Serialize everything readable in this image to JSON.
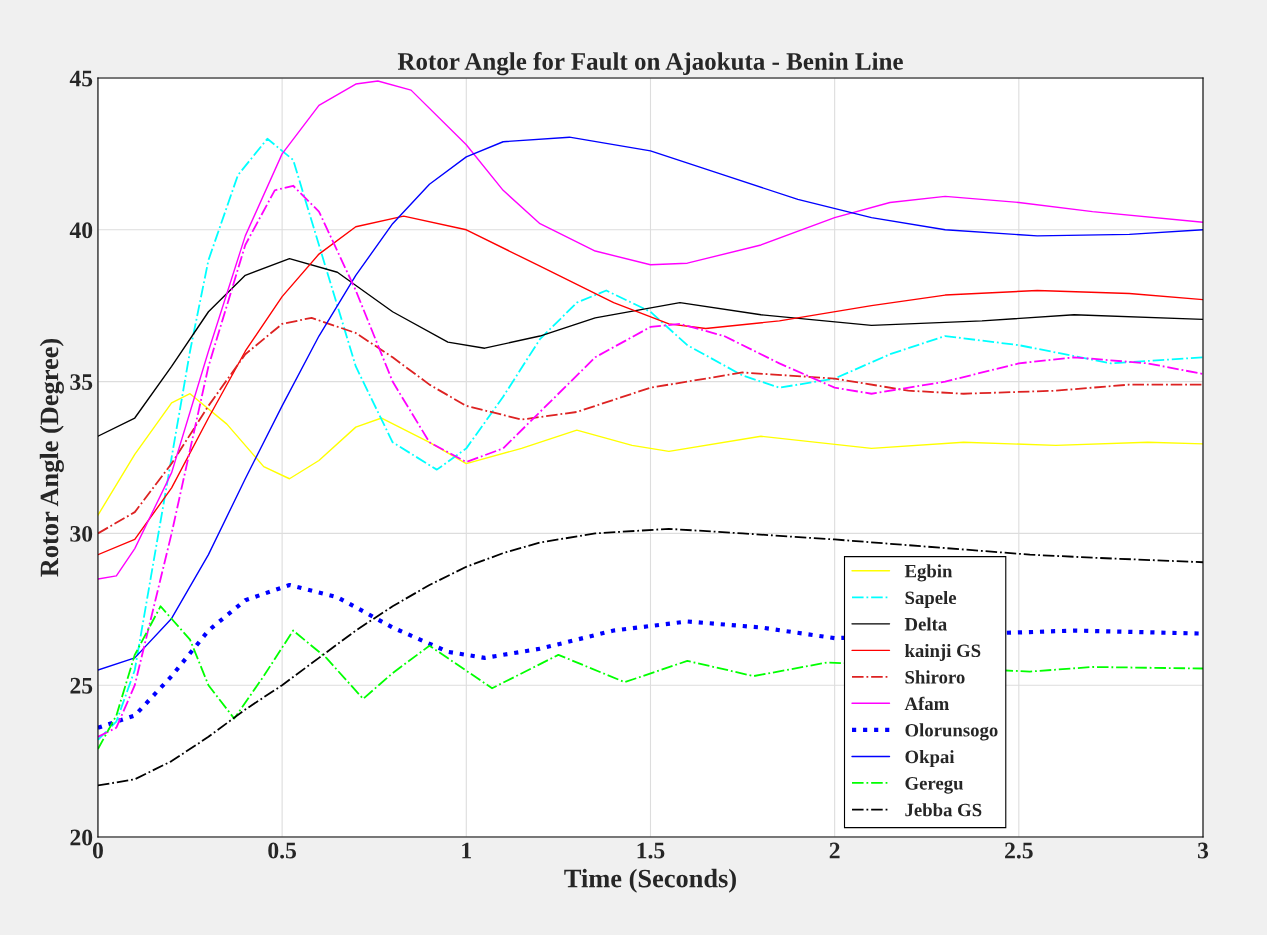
{
  "chart_data": {
    "type": "line",
    "title": "Rotor Angle for Fault on Ajaokuta - Benin Line",
    "xlabel": "Time (Seconds)",
    "ylabel": "Rotor Angle (Degree)",
    "xlim": [
      0,
      3
    ],
    "xticks": [
      0,
      0.5,
      1,
      1.5,
      2,
      2.5,
      3
    ],
    "ylim": [
      20,
      45
    ],
    "yticks": [
      20,
      25,
      30,
      35,
      40,
      45
    ],
    "grid": true,
    "legend": "bottom right",
    "series": [
      {
        "name": "Egbin",
        "color": "#ffff00",
        "line_style": "solid",
        "x": [
          0,
          0.1,
          0.2,
          0.25,
          0.35,
          0.45,
          0.52,
          0.6,
          0.7,
          0.77,
          0.9,
          1.0,
          1.15,
          1.3,
          1.45,
          1.55,
          1.8,
          2.1,
          2.35,
          2.6,
          2.85,
          3.0
        ],
        "values": [
          30.6,
          32.6,
          34.3,
          34.6,
          33.6,
          32.2,
          31.8,
          32.4,
          33.5,
          33.8,
          33.0,
          32.3,
          32.8,
          33.4,
          32.9,
          32.7,
          33.2,
          32.8,
          33.0,
          32.9,
          33.0,
          32.95
        ]
      },
      {
        "name": "Sapele",
        "color": "#00ffff",
        "line_style": "dashdot",
        "x": [
          0,
          0.05,
          0.1,
          0.15,
          0.2,
          0.25,
          0.3,
          0.38,
          0.46,
          0.53,
          0.6,
          0.7,
          0.8,
          0.92,
          1.0,
          1.1,
          1.2,
          1.3,
          1.38,
          1.5,
          1.6,
          1.75,
          1.85,
          2.0,
          2.15,
          2.3,
          2.5,
          2.75,
          3.0
        ],
        "values": [
          23.2,
          23.8,
          25.5,
          29,
          32.5,
          36,
          39,
          41.8,
          43.0,
          42.3,
          39.5,
          35.5,
          33.0,
          32.1,
          32.8,
          34.5,
          36.4,
          37.6,
          38.0,
          37.3,
          36.2,
          35.2,
          34.8,
          35.1,
          35.9,
          36.5,
          36.2,
          35.6,
          35.8
        ]
      },
      {
        "name": "Delta",
        "color": "#000000",
        "line_style": "solid",
        "x": [
          0,
          0.1,
          0.2,
          0.3,
          0.4,
          0.52,
          0.65,
          0.8,
          0.95,
          1.05,
          1.2,
          1.35,
          1.58,
          1.8,
          2.1,
          2.4,
          2.65,
          3.0
        ],
        "values": [
          33.2,
          33.8,
          35.5,
          37.3,
          38.5,
          39.05,
          38.6,
          37.3,
          36.3,
          36.1,
          36.5,
          37.1,
          37.6,
          37.2,
          36.85,
          37.0,
          37.2,
          37.05
        ]
      },
      {
        "name": "kainji GS",
        "color": "#ff0000",
        "line_style": "solid",
        "x": [
          0,
          0.1,
          0.2,
          0.3,
          0.4,
          0.5,
          0.6,
          0.7,
          0.83,
          1.0,
          1.2,
          1.4,
          1.55,
          1.65,
          1.85,
          2.1,
          2.3,
          2.55,
          2.8,
          3.0
        ],
        "values": [
          29.3,
          29.8,
          31.5,
          33.8,
          36,
          37.8,
          39.2,
          40.1,
          40.45,
          40.0,
          38.8,
          37.6,
          36.9,
          36.75,
          37.0,
          37.5,
          37.85,
          38.0,
          37.9,
          37.7
        ]
      },
      {
        "name": "Shiroro",
        "color": "#dd2222",
        "line_style": "dashdot",
        "x": [
          0,
          0.1,
          0.2,
          0.3,
          0.4,
          0.5,
          0.58,
          0.7,
          0.8,
          0.9,
          1.0,
          1.15,
          1.3,
          1.5,
          1.75,
          2.0,
          2.2,
          2.35,
          2.6,
          2.8,
          3.0
        ],
        "values": [
          30.0,
          30.7,
          32.3,
          34.2,
          35.9,
          36.9,
          37.1,
          36.6,
          35.8,
          34.9,
          34.2,
          33.75,
          34.0,
          34.8,
          35.3,
          35.1,
          34.7,
          34.6,
          34.7,
          34.9,
          34.9
        ]
      },
      {
        "name": "Afam",
        "color": "#ff00ff",
        "line_style": "solid",
        "x": [
          0,
          0.05,
          0.1,
          0.2,
          0.3,
          0.4,
          0.5,
          0.6,
          0.7,
          0.76,
          0.85,
          1.0,
          1.1,
          1.2,
          1.35,
          1.5,
          1.6,
          1.8,
          2.0,
          2.15,
          2.3,
          2.5,
          2.7,
          3.0
        ],
        "values": [
          28.5,
          28.6,
          29.5,
          32,
          36,
          39.8,
          42.5,
          44.1,
          44.8,
          44.9,
          44.6,
          42.8,
          41.3,
          40.2,
          39.3,
          38.85,
          38.9,
          39.5,
          40.4,
          40.9,
          41.1,
          40.9,
          40.6,
          40.25
        ]
      },
      {
        "name": "Olorunsogo",
        "color": "#0000ff",
        "line_style": "dotted",
        "x": [
          0,
          0.1,
          0.2,
          0.3,
          0.4,
          0.52,
          0.65,
          0.8,
          0.95,
          1.05,
          1.2,
          1.4,
          1.6,
          1.8,
          2.0,
          2.53,
          2.65,
          3.0
        ],
        "values": [
          23.6,
          24.0,
          25.3,
          26.8,
          27.8,
          28.3,
          27.9,
          26.9,
          26.1,
          25.9,
          26.2,
          26.8,
          27.1,
          26.9,
          26.55,
          26.75,
          26.8,
          26.7
        ]
      },
      {
        "name": "Okpai",
        "color": "#0000ff",
        "line_style": "solid",
        "x": [
          0,
          0.1,
          0.2,
          0.3,
          0.4,
          0.5,
          0.6,
          0.7,
          0.8,
          0.9,
          1.0,
          1.1,
          1.28,
          1.5,
          1.7,
          1.9,
          2.1,
          2.3,
          2.55,
          2.8,
          3.0
        ],
        "values": [
          25.5,
          25.9,
          27.2,
          29.3,
          31.8,
          34.2,
          36.5,
          38.5,
          40.2,
          41.5,
          42.4,
          42.9,
          43.05,
          42.6,
          41.8,
          41.0,
          40.4,
          40.0,
          39.8,
          39.85,
          40.0
        ]
      },
      {
        "color": "#ff00ff",
        "line_style": "dashdot",
        "x": [
          0,
          0.05,
          0.1,
          0.2,
          0.3,
          0.4,
          0.48,
          0.53,
          0.6,
          0.7,
          0.8,
          0.9,
          1.0,
          1.1,
          1.2,
          1.35,
          1.5,
          1.58,
          1.7,
          1.85,
          2.0,
          2.1,
          2.3,
          2.5,
          2.65,
          2.85,
          3.0
        ],
        "values": [
          23.3,
          23.6,
          25,
          30,
          35.5,
          39.5,
          41.3,
          41.45,
          40.6,
          38,
          35,
          33,
          32.35,
          32.8,
          34.0,
          35.8,
          36.8,
          36.9,
          36.5,
          35.6,
          34.8,
          34.6,
          35.0,
          35.6,
          35.8,
          35.6,
          35.25
        ]
      },
      {
        "name": "Geregu",
        "color": "#00ff00",
        "line_style": "dashdot",
        "x": [
          0,
          0.05,
          0.1,
          0.17,
          0.25,
          0.3,
          0.37,
          0.45,
          0.53,
          0.62,
          0.72,
          0.8,
          0.9,
          1.07,
          1.25,
          1.43,
          1.6,
          1.78,
          1.98,
          2.53,
          2.7,
          3.0
        ],
        "values": [
          22.9,
          24,
          26,
          27.6,
          26.5,
          25,
          23.9,
          25.3,
          26.8,
          25.9,
          24.55,
          25.4,
          26.3,
          24.9,
          26.0,
          25.1,
          25.8,
          25.3,
          25.75,
          25.45,
          25.6,
          25.55
        ]
      },
      {
        "name": "Jebba GS",
        "color": "#000000",
        "line_style": "dashdot",
        "x": [
          0,
          0.1,
          0.2,
          0.3,
          0.4,
          0.5,
          0.6,
          0.7,
          0.8,
          0.9,
          1.0,
          1.1,
          1.2,
          1.35,
          1.55,
          1.75,
          2.0,
          2.53,
          2.7,
          3.0
        ],
        "values": [
          21.7,
          21.9,
          22.5,
          23.3,
          24.2,
          25.0,
          25.9,
          26.8,
          27.6,
          28.3,
          28.9,
          29.35,
          29.7,
          30.0,
          30.15,
          30.0,
          29.8,
          29.3,
          29.2,
          29.05
        ]
      }
    ]
  }
}
